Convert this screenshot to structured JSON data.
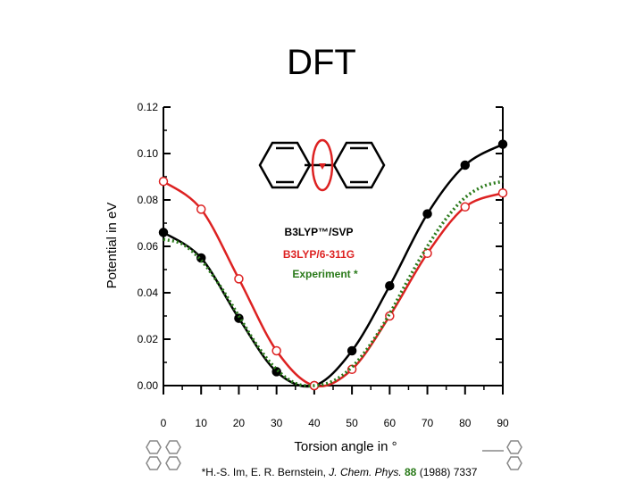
{
  "chart_data": {
    "type": "line",
    "title": "DFT",
    "xlabel": "Torsion angle in °",
    "ylabel": "Potential in eV",
    "xlim": [
      0,
      90
    ],
    "ylim": [
      0,
      0.12
    ],
    "xticks": [
      "0",
      "10",
      "20",
      "30",
      "40",
      "50",
      "60",
      "70",
      "80",
      "90"
    ],
    "yticks": [
      "0.00",
      "0.02",
      "0.04",
      "0.06",
      "0.08",
      "0.10",
      "0.12"
    ],
    "grid": false,
    "legend_position": "center",
    "series": [
      {
        "name": "B3LYP™/SVP",
        "color": "#000000",
        "marker": "filled-circle",
        "x": [
          0,
          10,
          20,
          30,
          40,
          50,
          60,
          70,
          80,
          90
        ],
        "y": [
          0.066,
          0.055,
          0.029,
          0.006,
          0.0,
          0.015,
          0.043,
          0.074,
          0.095,
          0.104
        ]
      },
      {
        "name": "B3LYP/6-311G",
        "color": "#dd2222",
        "marker": "open-circle",
        "x": [
          0,
          10,
          20,
          30,
          40,
          50,
          60,
          70,
          80,
          90
        ],
        "y": [
          0.088,
          0.076,
          0.046,
          0.015,
          0.0,
          0.007,
          0.03,
          0.057,
          0.077,
          0.083
        ]
      },
      {
        "name": "Experiment *",
        "color": "#2a7a1a",
        "marker": "dotted-line",
        "x": [
          0,
          5,
          10,
          15,
          20,
          25,
          30,
          35,
          40,
          45,
          50,
          55,
          60,
          65,
          70,
          75,
          80,
          85,
          90
        ],
        "y": [
          0.063,
          0.061,
          0.054,
          0.043,
          0.03,
          0.017,
          0.007,
          0.001,
          0.0,
          0.002,
          0.008,
          0.018,
          0.031,
          0.046,
          0.06,
          0.072,
          0.081,
          0.086,
          0.088
        ]
      }
    ]
  },
  "citation": {
    "prefix": "*H.-S. Im, E. R. Bernstein, ",
    "journal": "J. Chem. Phys.",
    "volume": "88",
    "suffix": " (1988) 7337"
  },
  "colors": {
    "axis": "#000000",
    "volume_highlight": "#2a7a1a"
  }
}
